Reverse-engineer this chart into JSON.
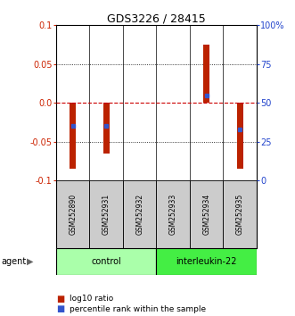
{
  "title": "GDS3226 / 28415",
  "samples": [
    "GSM252890",
    "GSM252931",
    "GSM252932",
    "GSM252933",
    "GSM252934",
    "GSM252935"
  ],
  "log10_ratio": [
    -0.085,
    -0.065,
    0.0,
    0.0,
    0.075,
    -0.085
  ],
  "percentile_rank_pct": [
    35,
    35,
    50,
    50,
    55,
    33
  ],
  "percentile_show": [
    true,
    true,
    false,
    false,
    true,
    true
  ],
  "bar_color": "#bb2200",
  "blue_color": "#3355cc",
  "ylim": [
    -0.1,
    0.1
  ],
  "yticks_left": [
    -0.1,
    -0.05,
    0.0,
    0.05,
    0.1
  ],
  "yticks_right": [
    0,
    25,
    50,
    75,
    100
  ],
  "groups": [
    {
      "label": "control",
      "start": 0,
      "end": 3,
      "color": "#aaffaa"
    },
    {
      "label": "interleukin-22",
      "start": 3,
      "end": 6,
      "color": "#44ee44"
    }
  ],
  "agent_label": "agent",
  "legend_items": [
    {
      "color": "#bb2200",
      "label": "log10 ratio"
    },
    {
      "color": "#3355cc",
      "label": "percentile rank within the sample"
    }
  ],
  "left_label_color": "#cc2200",
  "right_label_color": "#2244cc",
  "bg_color": "#ffffff",
  "zero_line_color": "#cc0000",
  "bar_width": 0.18
}
